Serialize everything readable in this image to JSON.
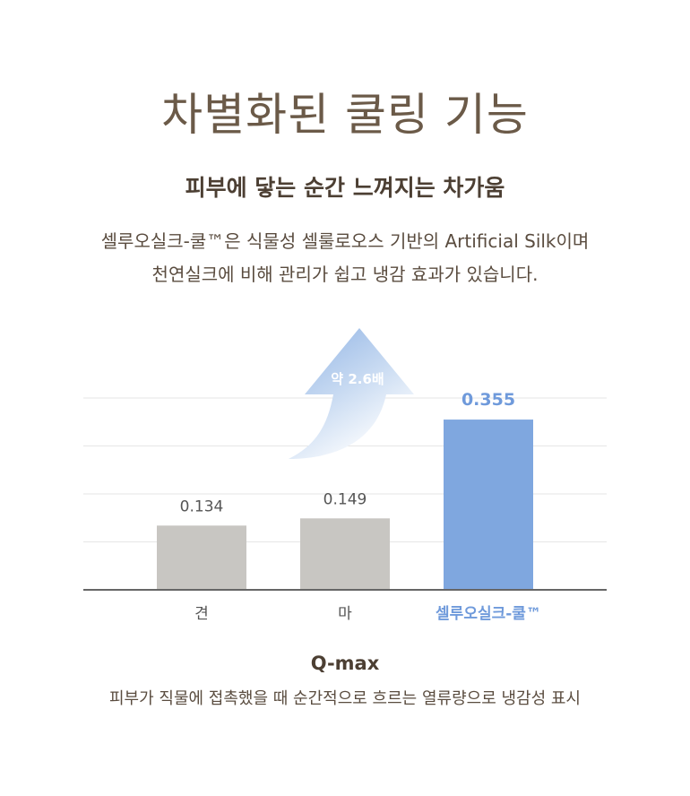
{
  "header": {
    "title": "차별화된 쿨링 기능",
    "subtitle": "피부에 닿는 순간 느껴지는 차가움",
    "description_line1": "셀루오실크-쿨™은 식물성 셀룰로오스 기반의  Artificial Silk이며",
    "description_line2": "천연실크에 비해 관리가 쉽고 냉감 효과가 있습니다."
  },
  "colors": {
    "bar_gray": "#c8c6c2",
    "bar_highlight": "#7fa7df",
    "highlight_text": "#6f9adb",
    "text_gray": "#555555",
    "axis": "#666666",
    "grid": "#e6e6e6"
  },
  "chart_data": {
    "type": "bar",
    "categories": [
      "견",
      "마",
      "셀루오실크-쿨™"
    ],
    "values": [
      0.134,
      0.149,
      0.355
    ],
    "data_labels": [
      "0.134",
      "0.149",
      "0.355"
    ],
    "highlight_index": 2,
    "ylim": [
      0,
      0.4
    ],
    "grid": true,
    "annotation": {
      "text": "약 2.6배",
      "from_category": 1,
      "to_category": 2
    },
    "xlabel": "Q-max",
    "caption": "피부가 직물에 접촉했을 때 순간적으로 흐르는 열류량으로 냉감성 표시"
  }
}
